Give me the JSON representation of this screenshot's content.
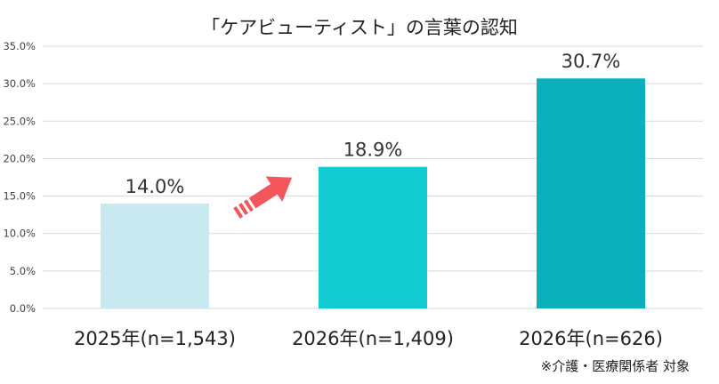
{
  "chart_data": {
    "type": "bar",
    "title": "「ケアビューティスト」の言葉の認知",
    "categories": [
      "2025年(n=1,543)",
      "2026年(n=1,409)",
      "2026年(n=626)"
    ],
    "values": [
      14.0,
      18.9,
      30.7
    ],
    "data_labels": [
      "14.0%",
      "18.9%",
      "30.7%"
    ],
    "bar_colors": [
      "#c7e9ef",
      "#12ccd1",
      "#0cb0bb"
    ],
    "ylim": [
      0,
      35
    ],
    "yticks": [
      0,
      5,
      10,
      15,
      20,
      25,
      30,
      35
    ],
    "ytick_labels": [
      "0.0%",
      "5.0%",
      "10.0%",
      "15.0%",
      "20.0%",
      "25.0%",
      "30.0%",
      "35.0%"
    ],
    "grid": true,
    "gridline_color": "#d9d9d9",
    "arrow_color": "#f2555a",
    "footnote": "※介護・医療関係者 対象"
  }
}
